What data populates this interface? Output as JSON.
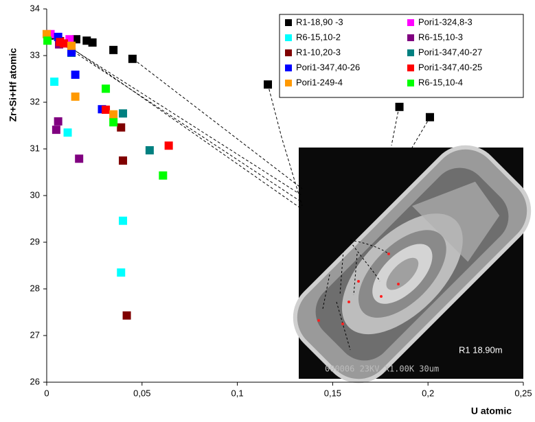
{
  "chart_data": {
    "type": "scatter",
    "xlabel": "U atomic",
    "ylabel": "Zr+Si+Hf atomic",
    "xlim": [
      0,
      0.25
    ],
    "ylim": [
      26,
      34
    ],
    "xticks": [
      {
        "value": 0,
        "label": "0"
      },
      {
        "value": 0.05,
        "label": "0,05"
      },
      {
        "value": 0.1,
        "label": "0,1"
      },
      {
        "value": 0.15,
        "label": "0,15"
      },
      {
        "value": 0.2,
        "label": "0,2"
      },
      {
        "value": 0.25,
        "label": "0,25"
      }
    ],
    "yticks": [
      26,
      27,
      28,
      29,
      30,
      31,
      32,
      33,
      34
    ],
    "annotations": [
      "R1 18.90m",
      "000006 23KV X1.00K 30um"
    ],
    "series": [
      {
        "name": "R1-18,90 -3",
        "color": "#000000",
        "x": [
          0.0015,
          0.0155,
          0.021,
          0.024,
          0.035,
          0.045,
          0.116,
          0.185,
          0.201
        ],
        "values": [
          33.43,
          33.35,
          33.32,
          33.28,
          33.12,
          32.93,
          32.38,
          31.9,
          31.68
        ]
      },
      {
        "name": "Pori1-324,8-3",
        "color": "#ff00ff",
        "x": [
          0.002,
          0.012
        ],
        "values": [
          33.46,
          33.35
        ]
      },
      {
        "name": "R6-15,10-2",
        "color": "#00ffff",
        "x": [
          0.004,
          0.011,
          0.04,
          0.039,
          0.013
        ],
        "values": [
          32.44,
          31.35,
          29.46,
          28.35,
          33.09
        ]
      },
      {
        "name": "R6-15,10-3",
        "color": "#800080",
        "x": [
          0.006,
          0.005,
          0.017,
          0.0065
        ],
        "values": [
          31.59,
          31.41,
          30.79,
          33.24
        ]
      },
      {
        "name": "R1-10,20-3",
        "color": "#800000",
        "x": [
          0.039,
          0.04,
          0.042,
          0.007
        ],
        "values": [
          31.46,
          30.75,
          27.43,
          33.31
        ]
      },
      {
        "name": "Pori1-347,40-27",
        "color": "#008080",
        "x": [
          0.04,
          0.054,
          0.013
        ],
        "values": [
          31.76,
          30.97,
          33.06
        ]
      },
      {
        "name": "Pori1-347,40-26",
        "color": "#0000ff",
        "x": [
          0.015,
          0.029,
          0.006,
          0.013
        ],
        "values": [
          32.59,
          31.85,
          33.4,
          33.07
        ]
      },
      {
        "name": "Pori1-347,40-25",
        "color": "#ff0000",
        "x": [
          0.031,
          0.064,
          0.007,
          0.009
        ],
        "values": [
          31.84,
          31.07,
          33.29,
          33.26
        ]
      },
      {
        "name": "Pori1-249-4",
        "color": "#ff9900",
        "x": [
          0,
          0.015,
          0.035,
          0.013
        ],
        "values": [
          33.46,
          32.12,
          31.74,
          33.21
        ]
      },
      {
        "name": "R6-15,10-4",
        "color": "#00ff00",
        "x": [
          0.031,
          0.035,
          0.061,
          0.0004
        ],
        "values": [
          32.29,
          31.57,
          30.43,
          33.32
        ]
      }
    ]
  }
}
